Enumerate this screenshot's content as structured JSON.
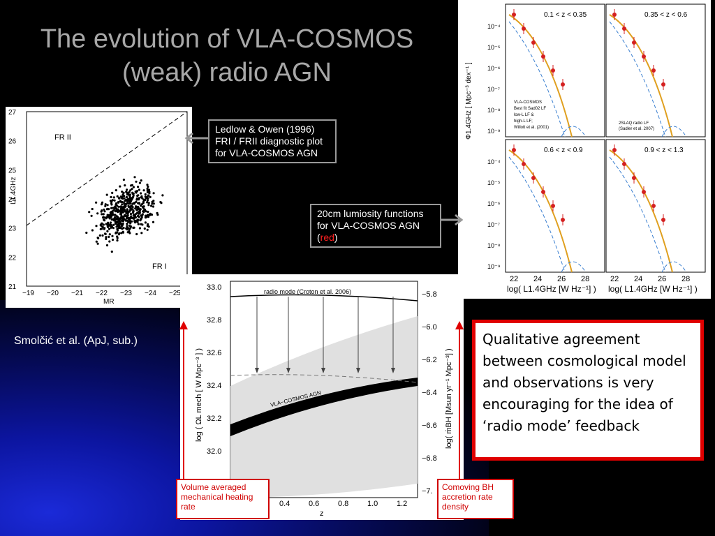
{
  "slide": {
    "title_line1": "The evolution of VLA-COSMOS",
    "title_line2": "(weak) radio AGN",
    "callout_fr": "Ledlow & Owen (1996) FRI / FRII diagnostic plot for VLA-COSMOS AGN",
    "callout_lf_prefix": "20cm lumiosity functions for VLA-COSMOS AGN (",
    "callout_lf_red": "red",
    "callout_lf_suffix": ")",
    "credit": "Smolčić et al. (ApJ, sub.)",
    "qualitative": "Qualitative agreement between cosmological model and observations is very encouraging for the idea of ‘radio mode’ feedback",
    "label_left": "Volume averaged mechanical heating rate",
    "label_right": "Comoving BH accretion rate density"
  },
  "scatter": {
    "ylabel": "L1.4GHz",
    "xlabel": "MR",
    "region_top": "FR II",
    "region_bottom": "FR I",
    "yticks": [
      "27",
      "26",
      "25",
      "24",
      "23",
      "22",
      "21"
    ],
    "xticks": [
      "−19",
      "−20",
      "−21",
      "−22",
      "−23",
      "−24",
      "−25"
    ]
  },
  "lf": {
    "panels": [
      "0.1 < z < 0.35",
      "0.35 < z < 0.6",
      "0.6 < z < 0.9",
      "0.9 < z < 1.3"
    ],
    "ylabel": "Φ1.4GHz [ Mpc⁻³ dex⁻¹ ]",
    "xlabel": "log( L1.4GHz [W Hz⁻¹] )",
    "yticks": [
      "10⁻⁴",
      "10⁻⁵",
      "10⁻⁶",
      "10⁻⁷",
      "10⁻⁸",
      "10⁻⁹"
    ],
    "xticks": [
      "22",
      "24",
      "26",
      "28"
    ],
    "legend1": [
      "VLA-COSMOS",
      "Best fit Sad02 LF",
      "low-L LF &",
      "high-L LF;",
      "Willott et al. (2001)"
    ],
    "legend2": [
      "2SLAQ radio LF",
      "(Sadler et al. 2007)"
    ]
  },
  "model": {
    "ylabel_left": "log ( ΩL mech [ W Mpc⁻³ ] )",
    "ylabel_right": "log( ṁBH [Msun yr⁻¹ Mpc⁻³] )",
    "xlabel": "z",
    "yticks_left": [
      "33.0",
      "32.8",
      "32.6",
      "32.4",
      "32.2",
      "32.0"
    ],
    "yticks_right": [
      "−5.8",
      "−6.0",
      "−6.2",
      "−6.4",
      "−6.6",
      "−6.8",
      "−7."
    ],
    "xticks": [
      "0.4",
      "0.6",
      "0.8",
      "1.0",
      "1.2"
    ],
    "radio_mode": "radio mode (Croton et al. 2006)",
    "band_label": "VLA−COSMOS AGN"
  },
  "colors": {
    "accent_red": "#e00000",
    "data_red": "#d42020",
    "fit_gold": "#e0a020",
    "dash_blue": "#3a7fd0"
  }
}
